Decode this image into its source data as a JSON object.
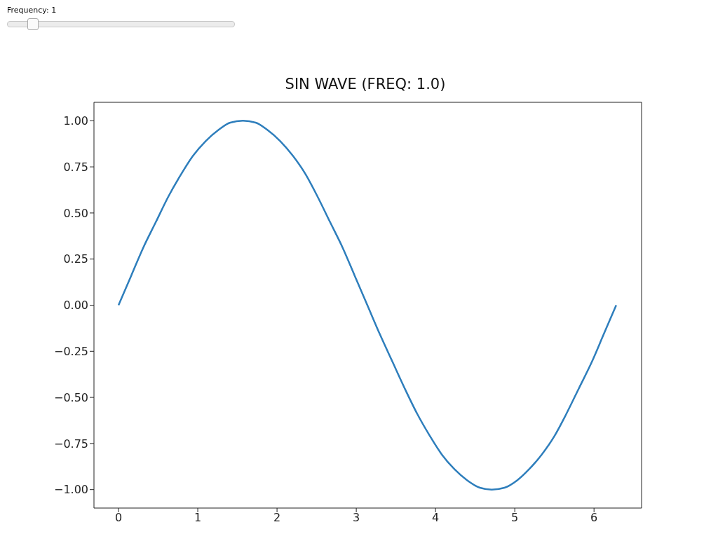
{
  "chart_data": {
    "type": "line",
    "title": "SIN WAVE (FREQ: 1.0)",
    "annotations": [
      "Frequency: 1"
    ],
    "x": [
      0,
      0.16,
      0.31,
      0.47,
      0.63,
      0.79,
      0.94,
      1.1,
      1.26,
      1.41,
      1.57,
      1.73,
      1.88,
      2.04,
      2.2,
      2.36,
      2.51,
      2.67,
      2.83,
      2.98,
      3.14,
      3.3,
      3.46,
      3.61,
      3.77,
      3.93,
      4.08,
      4.24,
      4.4,
      4.56,
      4.71,
      4.87,
      5.03,
      5.18,
      5.34,
      5.5,
      5.65,
      5.81,
      5.97,
      6.12,
      6.28
    ],
    "series": [
      {
        "color": "#2e7ebc",
        "values": [
          0,
          0.16,
          0.31,
          0.45,
          0.59,
          0.71,
          0.81,
          0.89,
          0.95,
          0.99,
          1,
          0.99,
          0.95,
          0.89,
          0.81,
          0.71,
          0.59,
          0.45,
          0.31,
          0.16,
          0,
          -0.16,
          -0.31,
          -0.45,
          -0.59,
          -0.71,
          -0.81,
          -0.89,
          -0.95,
          -0.99,
          -1,
          -0.99,
          -0.95,
          -0.89,
          -0.81,
          -0.71,
          -0.59,
          -0.45,
          -0.31,
          -0.16,
          0
        ]
      }
    ],
    "xlim": [
      -0.31,
      6.6
    ],
    "xticks": [
      0,
      1,
      2,
      3,
      4,
      5,
      6
    ],
    "ylim": [
      -1.1,
      1.1
    ],
    "yticks": [
      {
        "value": -1,
        "label": "−1.00"
      },
      {
        "value": -0.75,
        "label": "−0.75"
      },
      {
        "value": -0.5,
        "label": "−0.50"
      },
      {
        "value": -0.25,
        "label": "−0.25"
      },
      {
        "value": 0,
        "label": "0.00"
      },
      {
        "value": 0.25,
        "label": "0.25"
      },
      {
        "value": 0.5,
        "label": "0.50"
      },
      {
        "value": 0.75,
        "label": "0.75"
      },
      {
        "value": 1,
        "label": "1.00"
      }
    ],
    "line_style": "solid"
  }
}
